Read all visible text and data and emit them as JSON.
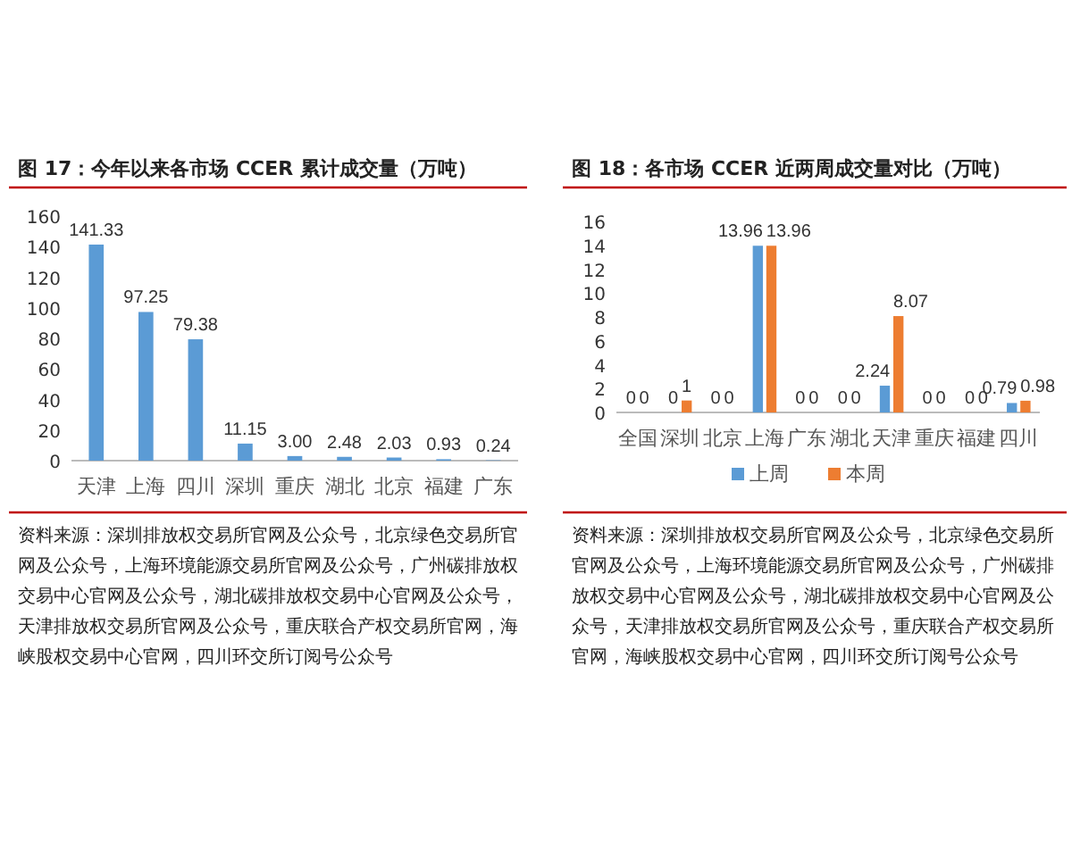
{
  "chart_data": [
    {
      "type": "bar",
      "title": "图 17：今年以来各市场 CCER 累计成交量（万吨）",
      "categories": [
        "天津",
        "上海",
        "四川",
        "深圳",
        "重庆",
        "湖北",
        "北京",
        "福建",
        "广东"
      ],
      "values": [
        141.33,
        97.25,
        79.38,
        11.15,
        3.0,
        2.48,
        2.03,
        0.93,
        0.24
      ],
      "color": "#5b9bd5",
      "value_labels": [
        "141.33",
        "97.25",
        "79.38",
        "11.15",
        "3.00",
        "2.48",
        "2.03",
        "0.93",
        "0.24"
      ],
      "ylim": [
        0,
        160
      ],
      "yticks": [
        0,
        20,
        40,
        60,
        80,
        100,
        120,
        140,
        160
      ],
      "annotations": [
        "资料来源：深圳排放权交易所官网及公众号，北京绿色交易所官网及公众号，上海环境能源交易所官网及公众号，广州碳排放权交易中心官网及公众号，湖北碳排放权交易中心官网及公众号，天津排放权交易所官网及公众号，重庆联合产权交易所官网，海峡股权交易中心官网，四川环交所订阅号公众号"
      ]
    },
    {
      "type": "bar",
      "title": "图 18：各市场 CCER 近两周成交量对比（万吨）",
      "categories": [
        "全国",
        "深圳",
        "北京",
        "上海",
        "广东",
        "湖北",
        "天津",
        "重庆",
        "福建",
        "四川"
      ],
      "series": [
        {
          "name": "上周",
          "color": "#5b9bd5",
          "values": [
            0,
            0,
            0,
            13.96,
            0,
            0,
            2.24,
            0,
            0,
            0.79
          ]
        },
        {
          "name": "本周",
          "color": "#ed7d31",
          "values": [
            0,
            1,
            0,
            13.96,
            0,
            0,
            8.07,
            0,
            0,
            0.98
          ]
        }
      ],
      "data_labels": true,
      "legend": "bottom",
      "ylim": [
        0,
        16
      ],
      "yticks": [
        0,
        2,
        4,
        6,
        8,
        10,
        12,
        14,
        16
      ],
      "annotations": [
        "资料来源：深圳排放权交易所官网及公众号，北京绿色交易所官网及公众号，上海环境能源交易所官网及公众号，广州碳排放权交易中心官网及公众号，湖北碳排放权交易中心官网及公众号，天津排放权交易所官网及公众号，重庆联合产权交易所官网，海峡股权交易中心官网，四川环交所订阅号公众号"
      ]
    }
  ]
}
